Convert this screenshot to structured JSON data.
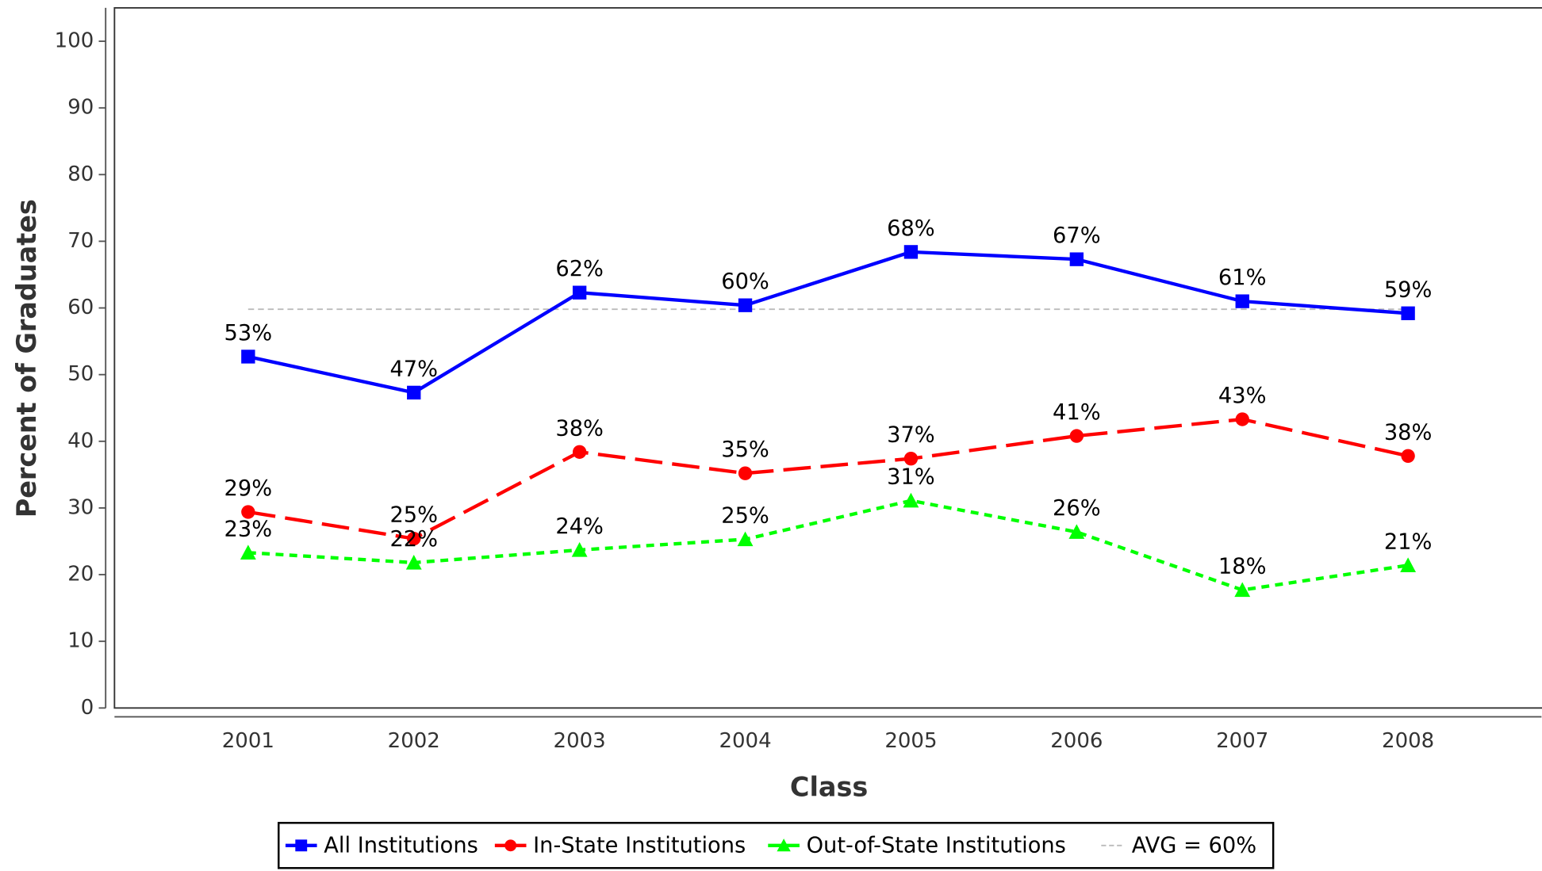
{
  "chart_data": {
    "type": "line",
    "x_label": "Class",
    "y_label": "Percent of Graduates",
    "categories": [
      "2001",
      "2002",
      "2003",
      "2004",
      "2005",
      "2006",
      "2007",
      "2008"
    ],
    "series": [
      {
        "name": "All Institutions",
        "color": "#0000ff",
        "marker": "square",
        "dash": "solid",
        "values": [
          52.7,
          47.3,
          62.3,
          60.4,
          68.4,
          67.3,
          61.0,
          59.2
        ],
        "value_labels": [
          "53%",
          "47%",
          "62%",
          "60%",
          "68%",
          "67%",
          "61%",
          "59%"
        ]
      },
      {
        "name": "In-State Institutions",
        "color": "#ff0000",
        "marker": "circle",
        "dash": "dashed",
        "values": [
          29.4,
          25.4,
          38.4,
          35.2,
          37.4,
          40.8,
          43.3,
          37.8
        ],
        "value_labels": [
          "29%",
          "25%",
          "38%",
          "35%",
          "37%",
          "41%",
          "43%",
          "38%"
        ]
      },
      {
        "name": "Out-of-State Institutions",
        "color": "#00ff00",
        "marker": "triangle",
        "dash": "dotted",
        "values": [
          23.3,
          21.8,
          23.7,
          25.3,
          31.1,
          26.4,
          17.7,
          21.4
        ],
        "value_labels": [
          "23%",
          "22%",
          "24%",
          "25%",
          "31%",
          "26%",
          "18%",
          "21%"
        ]
      }
    ],
    "reference_line": {
      "name": "AVG = 60%",
      "value": 59.8,
      "color": "#bbbbbb"
    },
    "ylim": [
      0,
      100
    ],
    "yticks": [
      0,
      10,
      20,
      30,
      40,
      50,
      60,
      70,
      80,
      90,
      100
    ],
    "legend": "bottom"
  }
}
